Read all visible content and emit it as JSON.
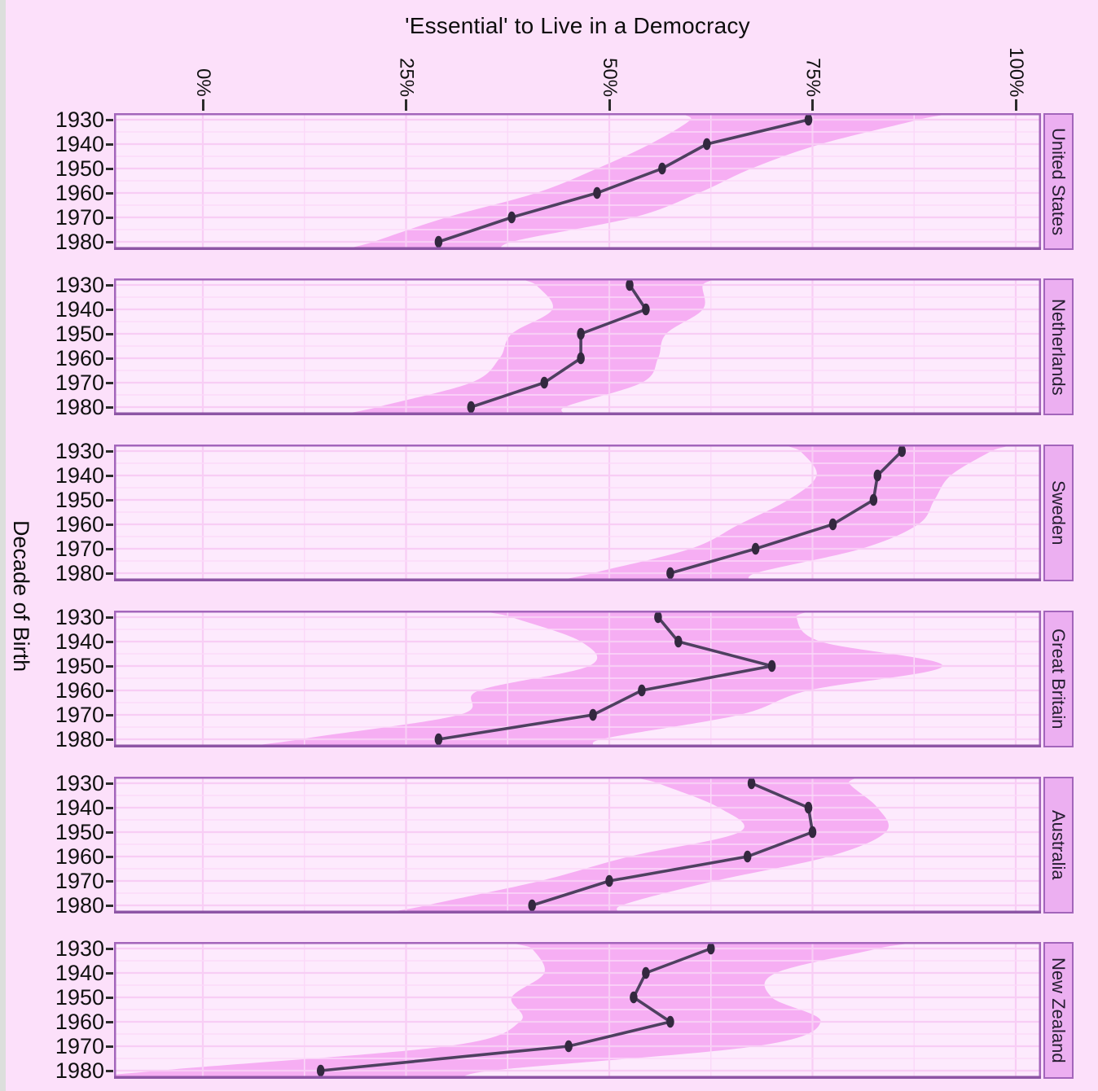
{
  "title": "'Essential' to Live in a Democracy",
  "y_axis_title": "Decade of Birth",
  "x_axis": {
    "tick_labels": [
      "0%",
      "25%",
      "50%",
      "75%",
      "100%"
    ],
    "tick_values": [
      0,
      25,
      50,
      75,
      100
    ]
  },
  "colors": {
    "outer_background": "#fce0fa",
    "panel_background": "#fdeafd",
    "ribbon": "#f6aef3",
    "grid_minor": "#fbd9f9",
    "grid_major": "#f8cdf5",
    "trend_line": "#4e4060",
    "marker": "#33283f",
    "frame": "#a365bb",
    "frame_bottom": "#8d55a5",
    "strip_background": "#ecaff1",
    "tick_mark": "#2b2b2b",
    "window_edge": "#dcdfdc"
  },
  "chart_data": {
    "type": "line",
    "title": "'Essential' to Live in a Democracy",
    "xlabel": "",
    "ylabel": "Decade of Birth",
    "orientation": "horizontal-value-axis",
    "x_range": [
      0,
      100
    ],
    "grid": true,
    "legend_position": "none",
    "categories": [
      "1930",
      "1940",
      "1950",
      "1960",
      "1970",
      "1980"
    ],
    "facets": [
      {
        "name": "United States",
        "values": [
          74.5,
          62,
          56.5,
          48.5,
          38,
          29
        ],
        "ci_low": [
          60,
          55,
          48.5,
          41,
          30,
          21
        ],
        "ci_high": [
          88,
          76,
          67.5,
          61,
          53,
          38
        ]
      },
      {
        "name": "Netherlands",
        "values": [
          52.5,
          54.5,
          46.5,
          46.5,
          42,
          33
        ],
        "ci_low": [
          41,
          43,
          38,
          36.5,
          33,
          21.5
        ],
        "ci_high": [
          61.5,
          61.5,
          57,
          56,
          54,
          44.5
        ]
      },
      {
        "name": "Sweden",
        "values": [
          86,
          83,
          82.5,
          77.5,
          68,
          57.5
        ],
        "ci_low": [
          73.5,
          75.5,
          72,
          66,
          60,
          48
        ],
        "ci_high": [
          97,
          92,
          90,
          88,
          81,
          68
        ]
      },
      {
        "name": "Great Britain",
        "values": [
          56,
          58.5,
          70,
          54,
          48,
          29
        ],
        "ci_low": [
          38,
          46.5,
          47.5,
          34,
          31.5,
          12
        ],
        "ci_high": [
          73,
          76,
          91,
          74.5,
          66,
          49
        ]
      },
      {
        "name": "Australia",
        "values": [
          67.5,
          74.5,
          75,
          67,
          50,
          40.5
        ],
        "ci_low": [
          56,
          63.5,
          66,
          52.5,
          41.5,
          27.5
        ],
        "ci_high": [
          79.5,
          83,
          84,
          77,
          63,
          51.5
        ]
      },
      {
        "name": "New Zealand",
        "values": [
          62.5,
          54.5,
          53,
          57.5,
          45,
          14.5
        ],
        "ci_low": [
          40.5,
          42,
          38,
          39,
          30,
          -5.5
        ],
        "ci_high": [
          83,
          70.5,
          70,
          76,
          68,
          35.5
        ]
      }
    ]
  }
}
